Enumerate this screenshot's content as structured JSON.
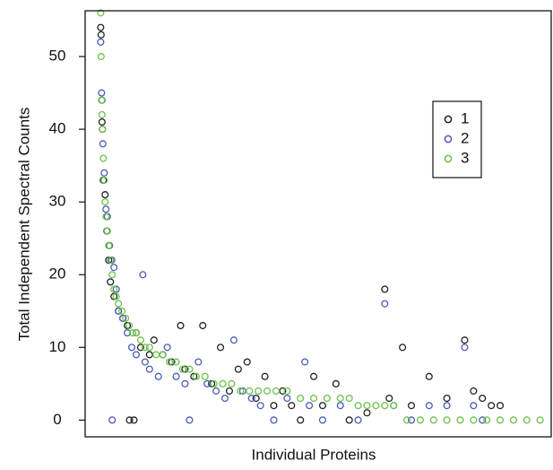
{
  "chart_data": {
    "type": "scatter",
    "x_label": "Individual Proteins",
    "y_label": "Total Independent Spectral Counts",
    "xlim": [
      -35,
      1015
    ],
    "ylim": [
      -2.3,
      56.3
    ],
    "yticks": [
      0,
      10,
      20,
      30,
      40,
      50
    ],
    "series": [
      {
        "name": "1",
        "color": "#222222",
        "x": [
          0,
          1,
          3,
          4,
          6,
          10,
          14,
          18,
          22,
          30,
          40,
          50,
          60,
          65,
          75,
          80,
          90,
          110,
          120,
          140,
          160,
          180,
          190,
          210,
          230,
          250,
          270,
          290,
          310,
          330,
          350,
          370,
          390,
          410,
          430,
          450,
          480,
          500,
          530,
          560,
          600,
          640,
          650,
          680,
          700,
          740,
          780,
          820,
          840,
          860,
          880,
          900
        ],
        "values": [
          54,
          53,
          41,
          40,
          33,
          31,
          26,
          22,
          19,
          17,
          15,
          14,
          13,
          0,
          0,
          12,
          10,
          9,
          11,
          9,
          8,
          13,
          7,
          6,
          13,
          5,
          10,
          4,
          7,
          8,
          3,
          6,
          2,
          4,
          2,
          0,
          6,
          2,
          5,
          0,
          1,
          18,
          3,
          10,
          2,
          6,
          3,
          11,
          4,
          3,
          2,
          2
        ]
      },
      {
        "name": "2",
        "color": "#4a5bb5",
        "x": [
          0,
          2,
          3,
          5,
          8,
          12,
          15,
          20,
          25,
          26,
          30,
          35,
          40,
          50,
          60,
          70,
          80,
          95,
          100,
          110,
          130,
          150,
          170,
          190,
          200,
          220,
          240,
          260,
          280,
          300,
          320,
          340,
          360,
          390,
          420,
          460,
          470,
          500,
          540,
          580,
          640,
          660,
          700,
          740,
          780,
          820,
          840,
          860
        ],
        "values": [
          52,
          45,
          44,
          38,
          34,
          29,
          28,
          24,
          22,
          0,
          21,
          18,
          15,
          14,
          12,
          10,
          9,
          20,
          8,
          7,
          6,
          10,
          6,
          5,
          0,
          8,
          5,
          4,
          3,
          11,
          4,
          3,
          2,
          0,
          3,
          8,
          2,
          0,
          2,
          0,
          16,
          2,
          0,
          2,
          2,
          10,
          2,
          0
        ]
      },
      {
        "name": "3",
        "color": "#6cc24a",
        "x": [
          0,
          1,
          2,
          3,
          4,
          6,
          8,
          10,
          12,
          15,
          18,
          22,
          26,
          30,
          35,
          40,
          48,
          56,
          64,
          72,
          80,
          90,
          100,
          110,
          125,
          140,
          155,
          170,
          185,
          200,
          215,
          235,
          255,
          275,
          295,
          315,
          335,
          355,
          375,
          395,
          420,
          450,
          480,
          510,
          540,
          560,
          580,
          600,
          620,
          640,
          660,
          690,
          720,
          750,
          780,
          810,
          840,
          870,
          900,
          930,
          960,
          990
        ],
        "values": [
          56,
          50,
          44,
          42,
          40,
          36,
          33,
          30,
          28,
          26,
          24,
          22,
          20,
          18,
          17,
          16,
          15,
          14,
          13,
          12,
          12,
          11,
          10,
          10,
          9,
          9,
          8,
          8,
          7,
          7,
          6,
          6,
          5,
          5,
          5,
          4,
          4,
          4,
          4,
          4,
          4,
          3,
          3,
          3,
          3,
          3,
          2,
          2,
          2,
          2,
          2,
          0,
          0,
          0,
          0,
          0,
          0,
          0,
          0,
          0,
          0,
          0
        ]
      }
    ]
  }
}
